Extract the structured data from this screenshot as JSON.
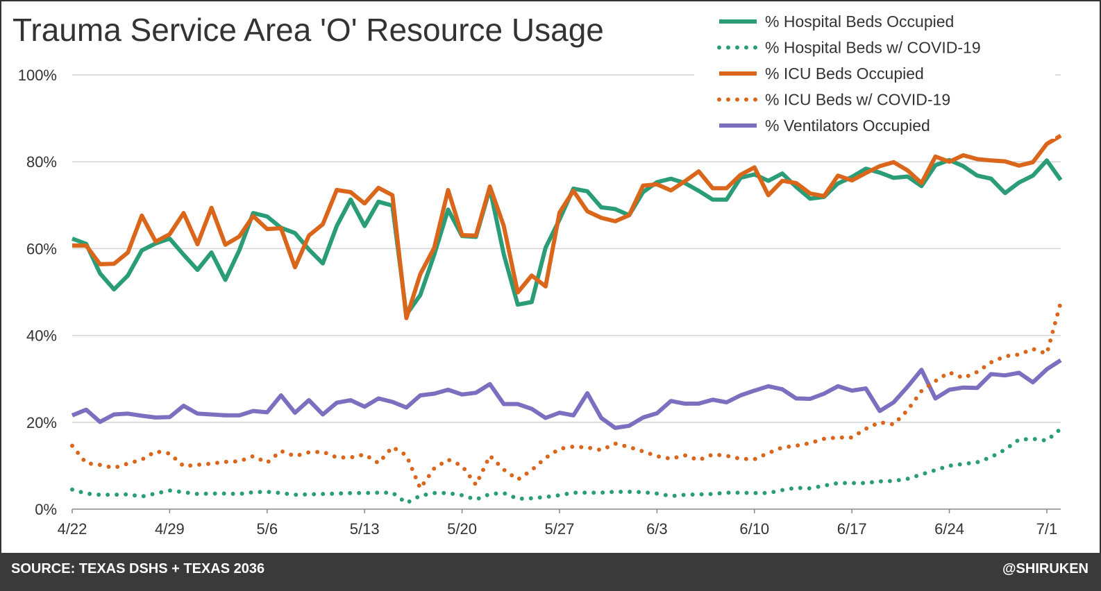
{
  "header": {
    "title": "Trauma Service Area 'O' Resource Usage"
  },
  "footer": {
    "source": "SOURCE: TEXAS DSHS + TEXAS 2036",
    "handle": "@SHIRUKEN"
  },
  "chart_data": {
    "type": "line",
    "title": "Trauma Service Area 'O' Resource Usage",
    "xlabel": "",
    "ylabel": "",
    "ylim": [
      0,
      100
    ],
    "y_ticks": [
      "0%",
      "20%",
      "40%",
      "60%",
      "80%",
      "100%"
    ],
    "x_tick_labels": [
      "4/22",
      "4/29",
      "5/6",
      "5/13",
      "5/20",
      "5/27",
      "6/3",
      "6/10",
      "6/17",
      "6/24",
      "7/1"
    ],
    "x": [
      "4/22",
      "4/23",
      "4/24",
      "4/25",
      "4/26",
      "4/27",
      "4/28",
      "4/29",
      "4/30",
      "5/1",
      "5/2",
      "5/3",
      "5/4",
      "5/5",
      "5/6",
      "5/7",
      "5/8",
      "5/9",
      "5/10",
      "5/11",
      "5/12",
      "5/13",
      "5/14",
      "5/15",
      "5/16",
      "5/17",
      "5/18",
      "5/19",
      "5/20",
      "5/21",
      "5/22",
      "5/23",
      "5/24",
      "5/25",
      "5/26",
      "5/27",
      "5/28",
      "5/29",
      "5/30",
      "5/31",
      "6/1",
      "6/2",
      "6/3",
      "6/4",
      "6/5",
      "6/6",
      "6/7",
      "6/8",
      "6/9",
      "6/10",
      "6/11",
      "6/12",
      "6/13",
      "6/14",
      "6/15",
      "6/16",
      "6/17",
      "6/18",
      "6/19",
      "6/20",
      "6/21",
      "6/22",
      "6/23",
      "6/24",
      "6/25",
      "6/26",
      "6/27",
      "6/28",
      "6/29",
      "6/30",
      "7/1",
      "7/2"
    ],
    "grid": true,
    "legend_position": "top-right",
    "series": [
      {
        "name": "% Hospital Beds Occupied",
        "color": "#2a9d78",
        "style": "solid",
        "values": [
          62.3,
          61.1,
          54.3,
          50.6,
          53.8,
          59.6,
          61.2,
          62.3,
          58.6,
          55.1,
          59.1,
          52.8,
          59.6,
          68.2,
          67.4,
          64.8,
          63.6,
          59.8,
          56.6,
          65.2,
          71.3,
          65.2,
          70.8,
          69.9,
          44.8,
          49.3,
          58.6,
          69.0,
          62.9,
          62.7,
          73.8,
          58.7,
          47.1,
          47.7,
          60.2,
          66.7,
          73.8,
          73.2,
          69.5,
          69.1,
          67.7,
          73.0,
          75.3,
          76.1,
          75.1,
          73.3,
          71.3,
          71.3,
          76.3,
          77.1,
          75.6,
          77.3,
          74.2,
          71.5,
          71.9,
          75.0,
          76.5,
          78.4,
          77.5,
          76.3,
          76.6,
          74.4,
          79.2,
          80.4,
          79.0,
          76.8,
          76.1,
          72.8,
          75.2,
          76.8,
          80.3,
          75.8
        ]
      },
      {
        "name": "% Hospital Beds w/ COVID-19",
        "color": "#2a9d78",
        "style": "dotted",
        "values": [
          4.5,
          3.6,
          3.3,
          3.3,
          3.4,
          2.9,
          3.6,
          4.3,
          3.9,
          3.5,
          3.6,
          3.6,
          3.5,
          3.9,
          4.0,
          3.7,
          3.3,
          3.4,
          3.5,
          3.6,
          3.7,
          3.7,
          3.8,
          3.8,
          1.4,
          3.1,
          3.7,
          3.7,
          3.2,
          2.2,
          3.5,
          3.7,
          2.4,
          2.5,
          2.8,
          3.2,
          3.8,
          3.8,
          3.8,
          4.0,
          4.0,
          3.9,
          3.6,
          3.0,
          3.3,
          3.4,
          3.5,
          3.8,
          3.8,
          3.7,
          3.7,
          4.4,
          4.9,
          4.8,
          5.4,
          6.0,
          6.0,
          6.0,
          6.4,
          6.5,
          7.0,
          8.0,
          9.0,
          10.0,
          10.4,
          10.8,
          12.0,
          13.7,
          16.0,
          16.2,
          15.8,
          18.5
        ]
      },
      {
        "name": "% ICU Beds Occupied",
        "color": "#d9661b",
        "style": "solid",
        "values": [
          60.7,
          60.7,
          56.4,
          56.5,
          59.1,
          67.6,
          61.6,
          63.3,
          68.2,
          61.0,
          69.4,
          60.9,
          62.8,
          67.5,
          64.5,
          64.7,
          55.7,
          63.0,
          65.6,
          73.5,
          73.0,
          70.4,
          74.0,
          72.3,
          44.0,
          54.1,
          60.2,
          73.5,
          63.1,
          63.0,
          74.3,
          65.2,
          49.9,
          53.8,
          51.3,
          68.3,
          73.3,
          68.6,
          67.1,
          66.3,
          67.7,
          74.5,
          74.8,
          73.4,
          75.5,
          77.8,
          73.9,
          73.9,
          77.0,
          78.7,
          72.3,
          75.6,
          75.1,
          72.7,
          72.1,
          76.8,
          75.7,
          77.4,
          79.0,
          79.9,
          78.0,
          75.1,
          81.2,
          80.0,
          81.5,
          80.6,
          80.3,
          80.1,
          79.1,
          79.9,
          84.1,
          86.0
        ]
      },
      {
        "name": "% ICU Beds w/ COVID-19",
        "color": "#d9661b",
        "style": "dotted",
        "values": [
          14.6,
          10.6,
          10.2,
          9.5,
          10.5,
          11.4,
          13.3,
          12.8,
          9.9,
          10.2,
          10.5,
          10.9,
          11.0,
          12.2,
          10.7,
          13.4,
          12.2,
          13.1,
          13.2,
          11.9,
          11.9,
          12.6,
          10.6,
          14.3,
          12.4,
          4.8,
          9.4,
          11.4,
          10.0,
          5.6,
          12.3,
          9.1,
          6.8,
          9.0,
          11.8,
          13.9,
          14.4,
          14.2,
          13.6,
          15.1,
          14.3,
          13.3,
          12.2,
          11.6,
          12.4,
          11.3,
          12.6,
          12.3,
          11.6,
          11.5,
          12.9,
          14.2,
          14.6,
          15.2,
          16.2,
          16.5,
          16.5,
          18.5,
          20.0,
          19.5,
          22.8,
          27.2,
          29.5,
          31.5,
          30.2,
          31.6,
          33.8,
          35.2,
          35.6,
          36.9,
          35.8,
          47.6
        ]
      },
      {
        "name": "% Ventilators Occupied",
        "color": "#7b6fbf",
        "style": "solid",
        "values": [
          21.6,
          22.9,
          20.1,
          21.8,
          22.0,
          21.5,
          21.1,
          21.2,
          23.8,
          22.0,
          21.8,
          21.6,
          21.6,
          22.6,
          22.3,
          26.2,
          22.2,
          25.1,
          21.8,
          24.5,
          25.1,
          23.6,
          25.5,
          24.7,
          23.4,
          26.2,
          26.6,
          27.5,
          26.4,
          26.8,
          28.8,
          24.2,
          24.2,
          23.1,
          21.0,
          22.2,
          21.6,
          26.7,
          21.0,
          18.7,
          19.2,
          21.1,
          22.1,
          24.9,
          24.3,
          24.3,
          25.2,
          24.6,
          26.2,
          27.3,
          28.3,
          27.6,
          25.5,
          25.4,
          26.6,
          28.3,
          27.3,
          27.8,
          22.6,
          24.6,
          28.2,
          32.1,
          25.5,
          27.5,
          28.0,
          27.9,
          31.1,
          30.8,
          31.4,
          29.2,
          32.2,
          34.3
        ]
      }
    ]
  }
}
